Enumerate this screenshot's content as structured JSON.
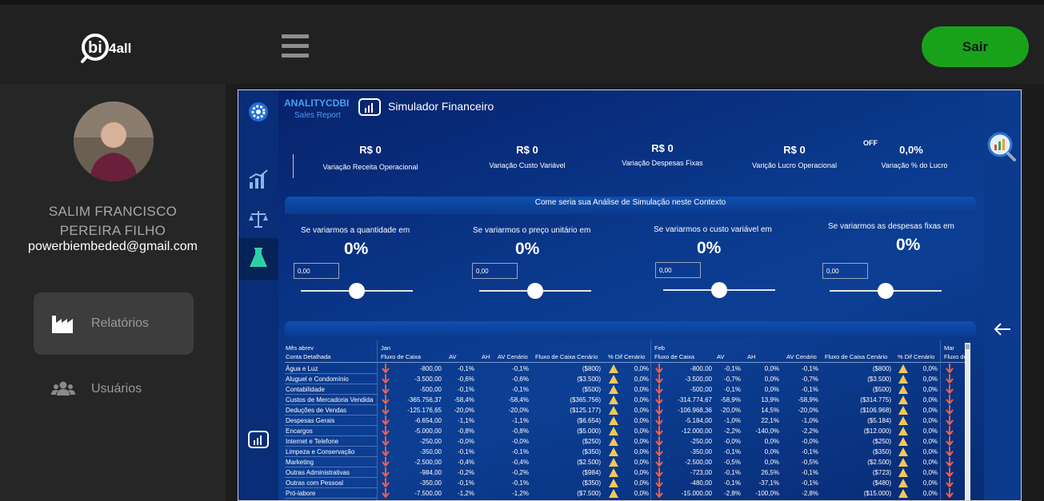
{
  "header": {
    "logo_alt": "bi4all",
    "menu_icon": "hamburger-icon",
    "logout_label": "Sair"
  },
  "sidebar": {
    "user_name_line1": "SALIM FRANCISCO",
    "user_name_line2": "PEREIRA FILHO",
    "user_email": "powerbiembeded@gmail.com",
    "items": [
      {
        "label": "Relatórios",
        "icon": "factory-icon",
        "active": true
      },
      {
        "label": "Usuários",
        "icon": "users-icon",
        "active": false
      }
    ]
  },
  "report": {
    "brand": "ANALITYCDBI",
    "brand_sub": "Sales Report",
    "title": "Simulador Financeiro",
    "kpis": [
      {
        "value": "R$ 0",
        "label": "Variação Receita Operacional"
      },
      {
        "value": "R$ 0",
        "label": "Variação Custo Variável"
      },
      {
        "value": "R$ 0",
        "label": "Variação Despesas Fixas"
      },
      {
        "value": "R$ 0",
        "label": "Varição Lucro Operacional"
      },
      {
        "value": "0,0%",
        "label": "Variação % do Lucro",
        "toggle": "OFF"
      }
    ],
    "band_title": "Come seria sua Análise de Simulação neste Contexto",
    "simulations": [
      {
        "label": "Se variarmos a quantidade em",
        "pct": "0%",
        "input": "0,00",
        "level": 0.5
      },
      {
        "label": "Se variarmos o preço unitário em",
        "pct": "0%",
        "input": "0,00",
        "level": 0.5
      },
      {
        "label": "Se variarmos o custo variável em",
        "pct": "0%",
        "input": "0,00",
        "level": 0.5
      },
      {
        "label": "Se variarmos as despesas fixas em",
        "pct": "0%",
        "input": "0,00",
        "level": 0.5
      }
    ],
    "table": {
      "row_header_top": "Mês abrev",
      "row_header": "Conta Detalhada",
      "months": [
        "Jan",
        "Feb",
        "Mar"
      ],
      "columns": [
        "Fluxo de Caixa",
        "AV",
        "AH",
        "AV Cenário",
        "Fluxo de Caixa Cenário",
        "% Dif Cenário"
      ],
      "mar_partial": "Fluxo de",
      "rows": [
        {
          "name": "Água e Luz",
          "jan": [
            "-800,00",
            "-0,1%",
            "",
            "-0,1%",
            "($800)",
            "0,0%"
          ],
          "feb": [
            "-800,00",
            "-0,1%",
            "0,0%",
            "-0,1%",
            "($800)",
            "0,0%"
          ]
        },
        {
          "name": "Aluguel e Condomínio",
          "jan": [
            "-3.500,00",
            "-0,6%",
            "",
            "-0,6%",
            "($3.500)",
            "0,0%"
          ],
          "feb": [
            "-3.500,00",
            "-0,7%",
            "0,0%",
            "-0,7%",
            "($3.500)",
            "0,0%"
          ]
        },
        {
          "name": "Contabilidade",
          "jan": [
            "-500,00",
            "-0,1%",
            "",
            "-0,1%",
            "($500)",
            "0,0%"
          ],
          "feb": [
            "-500,00",
            "-0,1%",
            "0,0%",
            "-0,1%",
            "($500)",
            "0,0%"
          ]
        },
        {
          "name": "Custos de Mercadoria Vendida",
          "jan": [
            "-365.756,37",
            "-58,4%",
            "",
            "-58,4%",
            "($365.756)",
            "0,0%"
          ],
          "feb": [
            "-314.774,67",
            "-58,9%",
            "13,9%",
            "-58,9%",
            "($314.775)",
            "0,0%"
          ]
        },
        {
          "name": "Deduções de Vendas",
          "jan": [
            "-125.176,65",
            "-20,0%",
            "",
            "-20,0%",
            "($125.177)",
            "0,0%"
          ],
          "feb": [
            "-106.968,36",
            "-20,0%",
            "14,5%",
            "-20,0%",
            "($106.968)",
            "0,0%"
          ]
        },
        {
          "name": "Despesas Gerais",
          "jan": [
            "-6.654,00",
            "-1,1%",
            "",
            "-1,1%",
            "($6.654)",
            "0,0%"
          ],
          "feb": [
            "-5.184,00",
            "-1,0%",
            "22,1%",
            "-1,0%",
            "($5.184)",
            "0,0%"
          ]
        },
        {
          "name": "Encargos",
          "jan": [
            "-5.000,00",
            "-0,8%",
            "",
            "-0,8%",
            "($5.000)",
            "0,0%"
          ],
          "feb": [
            "-12.000,00",
            "-2,2%",
            "-140,0%",
            "-2,2%",
            "($12.000)",
            "0,0%"
          ]
        },
        {
          "name": "Internet e Telefone",
          "jan": [
            "-250,00",
            "-0,0%",
            "",
            "-0,0%",
            "($250)",
            "0,0%"
          ],
          "feb": [
            "-250,00",
            "-0,0%",
            "0,0%",
            "-0,0%",
            "($250)",
            "0,0%"
          ]
        },
        {
          "name": "Limpeza e Conservação",
          "jan": [
            "-350,00",
            "-0,1%",
            "",
            "-0,1%",
            "($350)",
            "0,0%"
          ],
          "feb": [
            "-350,00",
            "-0,1%",
            "0,0%",
            "-0,1%",
            "($350)",
            "0,0%"
          ]
        },
        {
          "name": "Marketing",
          "jan": [
            "-2.500,00",
            "-0,4%",
            "",
            "-0,4%",
            "($2.500)",
            "0,0%"
          ],
          "feb": [
            "-2.500,00",
            "-0,5%",
            "0,0%",
            "-0,5%",
            "($2.500)",
            "0,0%"
          ]
        },
        {
          "name": "Outras Administrativas",
          "jan": [
            "-984,00",
            "-0,2%",
            "",
            "-0,2%",
            "($984)",
            "0,0%"
          ],
          "feb": [
            "-723,00",
            "-0,1%",
            "26,5%",
            "-0,1%",
            "($723)",
            "0,0%"
          ]
        },
        {
          "name": "Outras com Pessoal",
          "jan": [
            "-350,00",
            "-0,1%",
            "",
            "-0,1%",
            "($350)",
            "0,0%"
          ],
          "feb": [
            "-480,00",
            "-0,1%",
            "-37,1%",
            "-0,1%",
            "($480)",
            "0,0%"
          ]
        },
        {
          "name": "Pró-labore",
          "jan": [
            "-7.500,00",
            "-1,2%",
            "",
            "-1,2%",
            "($7.500)",
            "0,0%"
          ],
          "feb": [
            "-15.000,00",
            "-2,8%",
            "-100,0%",
            "-2,8%",
            "($15.000)",
            "0,0%"
          ]
        }
      ]
    }
  }
}
